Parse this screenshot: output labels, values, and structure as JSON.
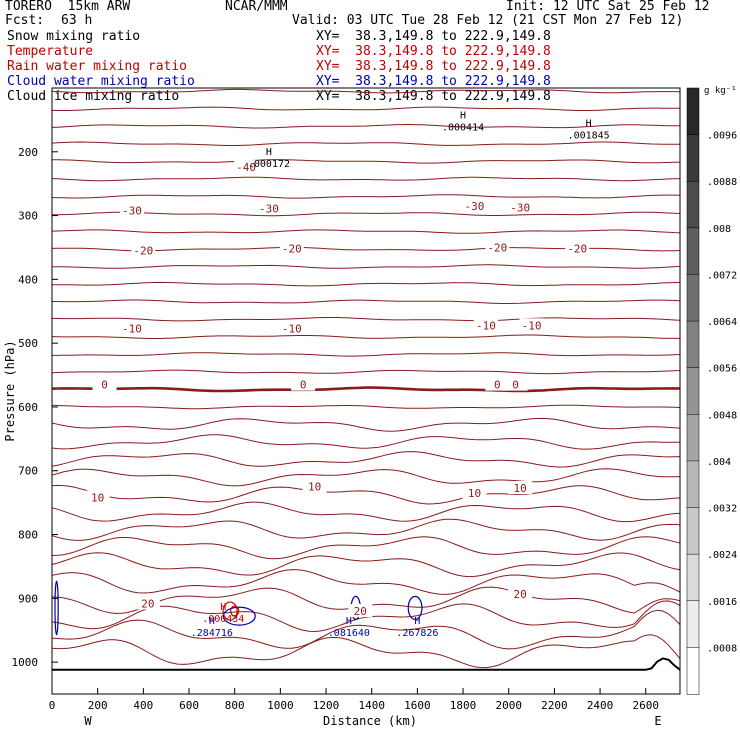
{
  "header": {
    "model": "TORERO  15km ARW",
    "org": "NCAR/MMM",
    "init": "Init: 12 UTC Sat 25 Feb 12",
    "fcst_label": "Fcst:",
    "fcst_value": "63 h",
    "valid": "Valid: 03 UTC Tue 28 Feb 12 (21 CST Mon 27 Feb 12)"
  },
  "fields": [
    {
      "name": "Snow mixing ratio",
      "xy": "XY=  38.3,149.8 to 222.9,149.8",
      "color": "#000000"
    },
    {
      "name": "Temperature",
      "xy": "XY=  38.3,149.8 to 222.9,149.8",
      "color": "#c00000"
    },
    {
      "name": "Rain water mixing ratio",
      "xy": "XY=  38.3,149.8 to 222.9,149.8",
      "color": "#c00000"
    },
    {
      "name": "Cloud water mixing ratio",
      "xy": "XY=  38.3,149.8 to 222.9,149.8",
      "color": "#0000b0"
    },
    {
      "name": "Cloud ice mixing ratio",
      "xy": "XY=  38.3,149.8 to 222.9,149.8",
      "color": "#000000"
    }
  ],
  "chart_data": {
    "type": "line",
    "title": "",
    "xlabel": "Distance (km)",
    "ylabel": "Pressure (hPa)",
    "x_ticks": [
      0,
      200,
      400,
      600,
      800,
      1000,
      1200,
      1400,
      1600,
      1800,
      2000,
      2200,
      2400,
      2600
    ],
    "y_ticks": [
      200,
      300,
      400,
      500,
      600,
      700,
      800,
      900,
      1000
    ],
    "xlim": [
      0,
      2750
    ],
    "ylim": [
      1050,
      100
    ],
    "x_end_labels": {
      "left": "W",
      "right": "E"
    },
    "colorbar": {
      "unit": "g kg⁻¹",
      "tick_labels": [
        ".0096",
        ".0088",
        ".008",
        ".0072",
        ".0064",
        ".0056",
        ".0048",
        ".004",
        ".0032",
        ".0024",
        ".0016",
        ".0008"
      ],
      "range": [
        0,
        0.0104
      ]
    },
    "temperature_contours": {
      "color": "#8b1a1a",
      "interval": 5,
      "labels": [
        {
          "text": "-40",
          "x": 850,
          "p": 224
        },
        {
          "text": "-30",
          "x": 350,
          "p": 292
        },
        {
          "text": "-30",
          "x": 950,
          "p": 289
        },
        {
          "text": "-30",
          "x": 1850,
          "p": 285
        },
        {
          "text": "-30",
          "x": 2050,
          "p": 287
        },
        {
          "text": "-20",
          "x": 400,
          "p": 355
        },
        {
          "text": "-20",
          "x": 1050,
          "p": 352
        },
        {
          "text": "-20",
          "x": 1950,
          "p": 350
        },
        {
          "text": "-20",
          "x": 2300,
          "p": 352
        },
        {
          "text": "-10",
          "x": 350,
          "p": 477
        },
        {
          "text": "-10",
          "x": 1050,
          "p": 477
        },
        {
          "text": "-10",
          "x": 1900,
          "p": 472
        },
        {
          "text": "-10",
          "x": 2100,
          "p": 472
        },
        {
          "text": "0",
          "x": 230,
          "p": 565
        },
        {
          "text": "0",
          "x": 1100,
          "p": 565
        },
        {
          "text": "0",
          "x": 1950,
          "p": 565
        },
        {
          "text": "0",
          "x": 2030,
          "p": 565
        },
        {
          "text": "10",
          "x": 200,
          "p": 742
        },
        {
          "text": "10",
          "x": 1150,
          "p": 725
        },
        {
          "text": "10",
          "x": 1850,
          "p": 735
        },
        {
          "text": "10",
          "x": 2050,
          "p": 727
        },
        {
          "text": "20",
          "x": 420,
          "p": 908
        },
        {
          "text": "20",
          "x": 1350,
          "p": 920
        },
        {
          "text": "20",
          "x": 2050,
          "p": 893
        }
      ]
    },
    "maxima": [
      {
        "symbol": "H",
        "value": ".000172",
        "x": 950,
        "p": 205,
        "color": "#000000"
      },
      {
        "symbol": "H",
        "value": ".001845",
        "x": 2350,
        "p": 160,
        "color": "#000000"
      },
      {
        "symbol": "H",
        "value": ".000414",
        "x": 1800,
        "p": 148,
        "color": "#000000"
      },
      {
        "symbol": "H",
        "value": ".000434",
        "x": 750,
        "p": 918,
        "color": "#c00000"
      },
      {
        "symbol": "H",
        "value": ".284716",
        "x": 700,
        "p": 940,
        "color": "#0000b0"
      },
      {
        "symbol": "H",
        "value": ".081640",
        "x": 1300,
        "p": 940,
        "color": "#0000b0"
      },
      {
        "symbol": "H",
        "value": ".267826",
        "x": 1600,
        "p": 940,
        "color": "#0000b0"
      }
    ],
    "terrain_surface_hPa": 1012
  }
}
